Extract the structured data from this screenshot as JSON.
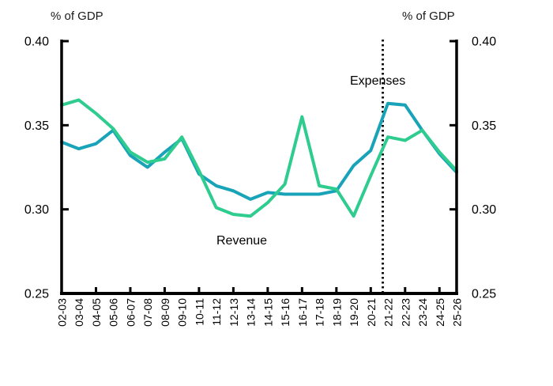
{
  "chart_data": {
    "type": "line",
    "title": "",
    "left_axis_title": "% of GDP",
    "right_axis_title": "% of GDP",
    "xlabel": "",
    "ylabel": "% of GDP",
    "categories": [
      "02-03",
      "03-04",
      "04-05",
      "05-06",
      "06-07",
      "07-08",
      "08-09",
      "09-10",
      "10-11",
      "11-12",
      "12-13",
      "13-14",
      "14-15",
      "15-16",
      "16-17",
      "17-18",
      "18-19",
      "19-20",
      "20-21",
      "21-22",
      "22-23",
      "23-24",
      "24-25",
      "25-26"
    ],
    "series": [
      {
        "name": "Expenses",
        "color": "#18A3B8",
        "values": [
          0.34,
          0.336,
          0.339,
          0.347,
          0.332,
          0.325,
          0.334,
          0.342,
          0.321,
          0.314,
          0.311,
          0.306,
          0.31,
          0.309,
          0.309,
          0.309,
          0.311,
          0.326,
          0.335,
          0.363,
          0.362,
          0.347,
          0.333,
          0.322
        ]
      },
      {
        "name": "Revenue",
        "color": "#2ECC8E",
        "values": [
          0.362,
          0.365,
          0.357,
          0.348,
          0.334,
          0.328,
          0.33,
          0.343,
          0.323,
          0.301,
          0.297,
          0.296,
          0.304,
          0.315,
          0.355,
          0.314,
          0.312,
          0.296,
          0.32,
          0.343,
          0.341,
          0.347,
          0.334,
          0.323
        ]
      }
    ],
    "y_axis": {
      "min": 0.25,
      "max": 0.4,
      "ticks": [
        0.25,
        0.3,
        0.35,
        0.4
      ],
      "tick_labels": [
        "0.25",
        "0.30",
        "0.35",
        "0.40"
      ],
      "labels_on_both_sides": true
    },
    "x_tick_indices": [
      2,
      4,
      6,
      8,
      10,
      12,
      14,
      16,
      18,
      20,
      22
    ],
    "forecast_divider": {
      "style": "dotted",
      "color": "#000000",
      "after_category": "20-21",
      "before_category": "21-22",
      "position_index": 18.7
    },
    "grid": false,
    "legend": "inline-labels",
    "axis_color": "#000000",
    "ylim": [
      0.25,
      0.4
    ]
  }
}
